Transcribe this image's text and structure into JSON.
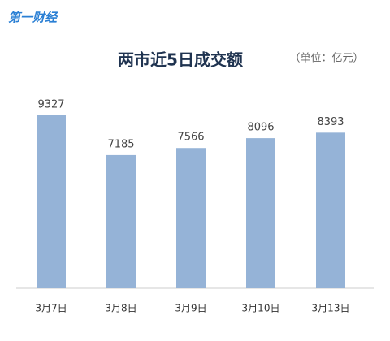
{
  "logo": "第一财经",
  "chart_data": {
    "type": "bar",
    "title": "两市近5日成交额",
    "subtitle": "（单位：亿元）",
    "categories": [
      "3月7日",
      "3月8日",
      "3月9日",
      "3月10日",
      "3月13日"
    ],
    "values": [
      9327,
      7185,
      7566,
      8096,
      8393
    ],
    "color": "#95b3d7"
  }
}
